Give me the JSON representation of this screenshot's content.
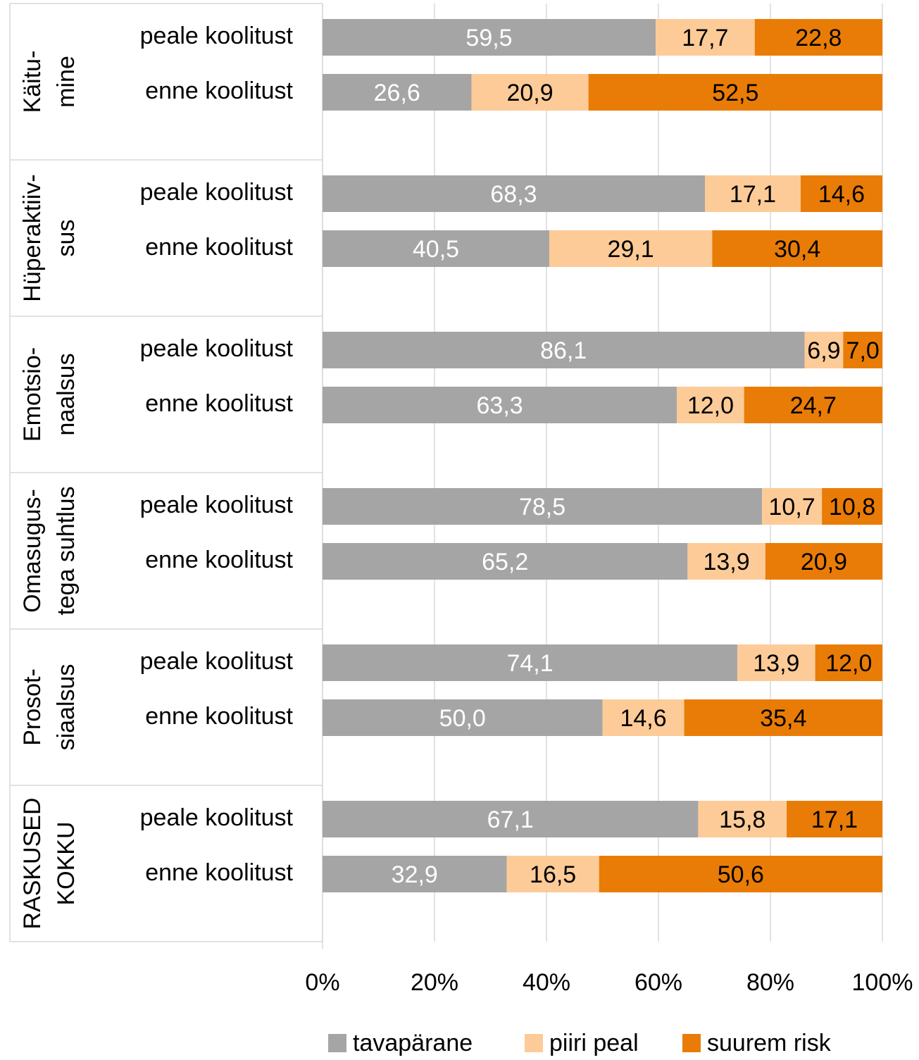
{
  "chart_data": {
    "type": "bar",
    "orientation": "horizontal",
    "stacked": "percent",
    "groups": [
      {
        "label_lines": [
          "Käitu-",
          "mine"
        ],
        "rows": [
          {
            "label": "peale koolitust",
            "values": [
              59.5,
              17.7,
              22.8
            ],
            "labels": [
              "59,5",
              "17,7",
              "22,8"
            ]
          },
          {
            "label": "enne koolitust",
            "values": [
              26.6,
              20.9,
              52.5
            ],
            "labels": [
              "26,6",
              "20,9",
              "52,5"
            ]
          }
        ]
      },
      {
        "label_lines": [
          "Hüperaktiiv-",
          "sus"
        ],
        "rows": [
          {
            "label": "peale koolitust",
            "values": [
              68.3,
              17.1,
              14.6
            ],
            "labels": [
              "68,3",
              "17,1",
              "14,6"
            ]
          },
          {
            "label": "enne koolitust",
            "values": [
              40.5,
              29.1,
              30.4
            ],
            "labels": [
              "40,5",
              "29,1",
              "30,4"
            ]
          }
        ]
      },
      {
        "label_lines": [
          "Emotsio-",
          "naalsus"
        ],
        "rows": [
          {
            "label": "peale koolitust",
            "values": [
              86.1,
              6.9,
              7.0
            ],
            "labels": [
              "86,1",
              "6,9",
              "7,0"
            ]
          },
          {
            "label": "enne koolitust",
            "values": [
              63.3,
              12.0,
              24.7
            ],
            "labels": [
              "63,3",
              "12,0",
              "24,7"
            ]
          }
        ]
      },
      {
        "label_lines": [
          "Omasugus-",
          "tega suhtlus"
        ],
        "rows": [
          {
            "label": "peale koolitust",
            "values": [
              78.5,
              10.7,
              10.8
            ],
            "labels": [
              "78,5",
              "10,7",
              "10,8"
            ]
          },
          {
            "label": "enne koolitust",
            "values": [
              65.2,
              13.9,
              20.9
            ],
            "labels": [
              "65,2",
              "13,9",
              "20,9"
            ]
          }
        ]
      },
      {
        "label_lines": [
          "Prosot-",
          "siaalsus"
        ],
        "rows": [
          {
            "label": "peale koolitust",
            "values": [
              74.1,
              13.9,
              12.0
            ],
            "labels": [
              "74,1",
              "13,9",
              "12,0"
            ]
          },
          {
            "label": "enne koolitust",
            "values": [
              50.0,
              14.6,
              35.4
            ],
            "labels": [
              "50,0",
              "14,6",
              "35,4"
            ]
          }
        ]
      },
      {
        "label_lines": [
          "RASKUSED",
          "KOKKU"
        ],
        "rows": [
          {
            "label": "peale koolitust",
            "values": [
              67.1,
              15.8,
              17.1
            ],
            "labels": [
              "67,1",
              "15,8",
              "17,1"
            ]
          },
          {
            "label": "enne koolitust",
            "values": [
              32.9,
              16.5,
              50.6
            ],
            "labels": [
              "32,9",
              "16,5",
              "50,6"
            ]
          }
        ]
      }
    ],
    "series": [
      {
        "name": "tavapärane",
        "color": "#a5a5a5",
        "label_color": "#ffffff"
      },
      {
        "name": "piiri peal",
        "color": "#fdcb98",
        "label_color": "#000000"
      },
      {
        "name": "suurem risk",
        "color": "#e97c07",
        "label_color": "#000000"
      }
    ],
    "xlim": [
      0,
      100
    ],
    "xticks": [
      "0%",
      "20%",
      "40%",
      "60%",
      "80%",
      "100%"
    ],
    "grid": true,
    "legend_position": "bottom"
  }
}
